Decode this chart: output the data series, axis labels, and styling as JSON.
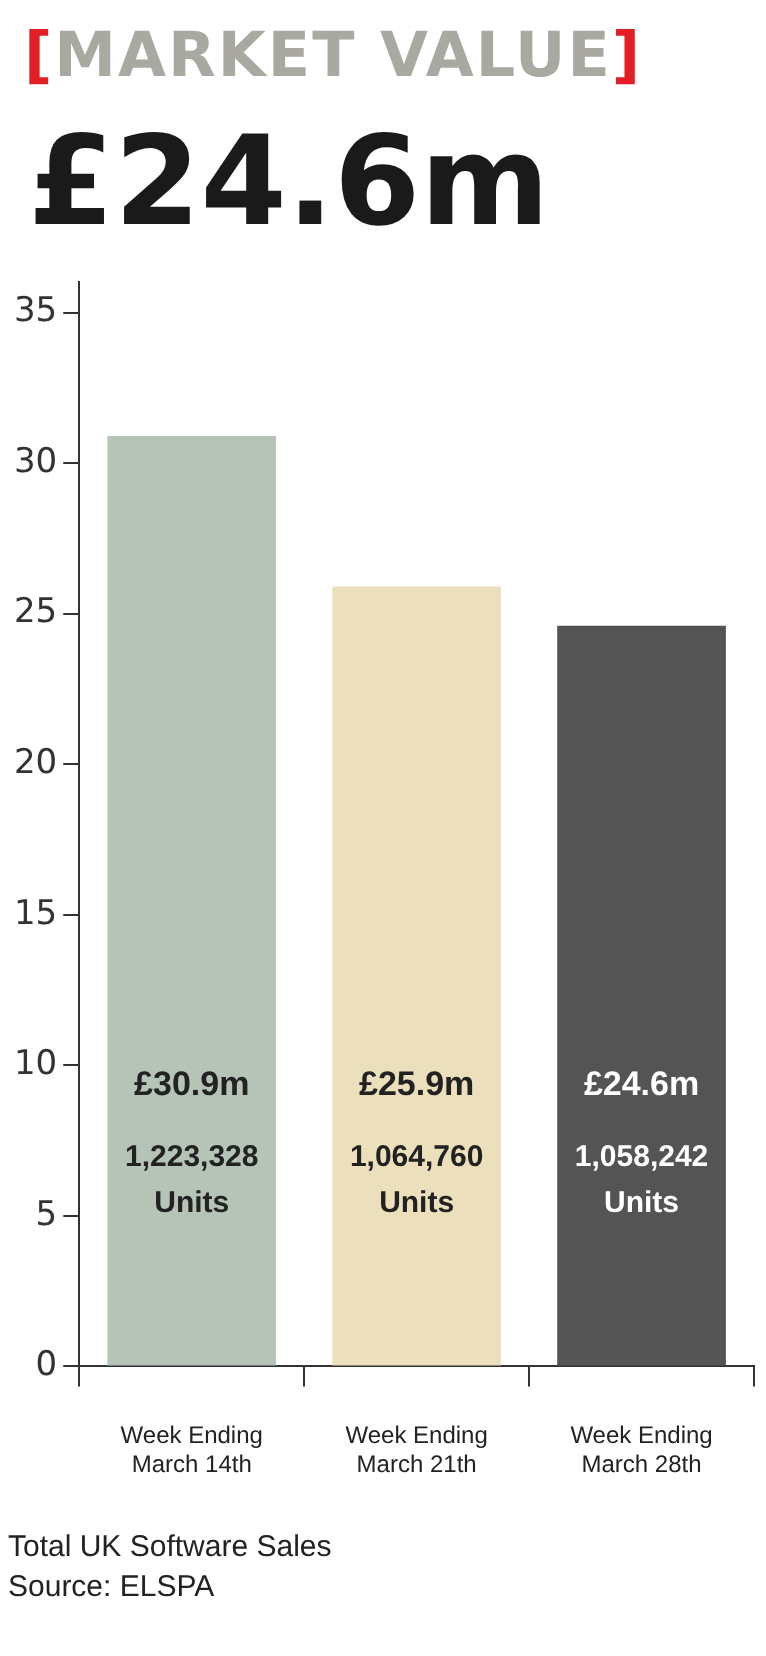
{
  "chart_data": {
    "type": "bar",
    "title": "[MARKET VALUE]",
    "subtitle": "£24.6m",
    "categories": [
      "Week Ending\nMarch 14th",
      "Week Ending\nMarch 21th",
      "Week Ending\nMarch 28th"
    ],
    "values": [
      30.9,
      25.9,
      24.6
    ],
    "colors": [
      "#b5c4b6",
      "#ebe0bb",
      "#545454"
    ],
    "value_labels": [
      "£30.9m",
      "£25.9m",
      "£24.6m"
    ],
    "ylim": [
      0,
      36
    ],
    "yticks": [
      0,
      5,
      10,
      15,
      20,
      25,
      30,
      35
    ],
    "grid": false,
    "legend": false,
    "annotations": [
      "1,223,328\nUnits",
      "1,064,760\nUnits",
      "1,058,242\nUnits",
      "Total UK Software Sales",
      "Source: ELSPA"
    ]
  }
}
